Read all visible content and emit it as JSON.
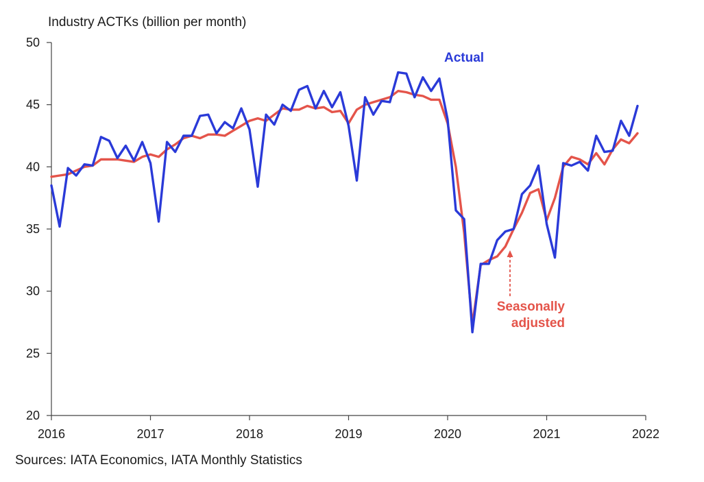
{
  "chart_data": {
    "type": "line",
    "title": "",
    "ylabel": "Industry ACTKs (billion per month)",
    "xlabel": "",
    "source": "Sources: IATA Economics, IATA Monthly Statistics",
    "xlim": [
      2016,
      2022
    ],
    "ylim": [
      20,
      50
    ],
    "yticks": [
      20,
      25,
      30,
      35,
      40,
      45,
      50
    ],
    "xticks": [
      "2016",
      "2017",
      "2018",
      "2019",
      "2020",
      "2021",
      "2022"
    ],
    "grid": false,
    "series": [
      {
        "name": "Actual",
        "color": "#2a3ad8",
        "x": [
          "2016-01",
          "2016-02",
          "2016-03",
          "2016-04",
          "2016-05",
          "2016-06",
          "2016-07",
          "2016-08",
          "2016-09",
          "2016-10",
          "2016-11",
          "2016-12",
          "2017-01",
          "2017-02",
          "2017-03",
          "2017-04",
          "2017-05",
          "2017-06",
          "2017-07",
          "2017-08",
          "2017-09",
          "2017-10",
          "2017-11",
          "2017-12",
          "2018-01",
          "2018-02",
          "2018-03",
          "2018-04",
          "2018-05",
          "2018-06",
          "2018-07",
          "2018-08",
          "2018-09",
          "2018-10",
          "2018-11",
          "2018-12",
          "2019-01",
          "2019-02",
          "2019-03",
          "2019-04",
          "2019-05",
          "2019-06",
          "2019-07",
          "2019-08",
          "2019-09",
          "2019-10",
          "2019-11",
          "2019-12",
          "2020-01",
          "2020-02",
          "2020-03",
          "2020-04",
          "2020-05",
          "2020-06",
          "2020-07",
          "2020-08",
          "2020-09",
          "2020-10",
          "2020-11",
          "2020-12",
          "2021-01",
          "2021-02",
          "2021-03",
          "2021-04",
          "2021-05",
          "2021-06",
          "2021-07",
          "2021-08",
          "2021-09",
          "2021-10",
          "2021-11",
          "2021-12"
        ],
        "values": [
          38.5,
          35.2,
          39.9,
          39.3,
          40.2,
          40.1,
          42.4,
          42.1,
          40.7,
          41.7,
          40.5,
          42.0,
          40.3,
          35.6,
          42.0,
          41.2,
          42.5,
          42.5,
          44.1,
          44.2,
          42.7,
          43.6,
          43.1,
          44.7,
          43.0,
          38.4,
          44.2,
          43.4,
          45.0,
          44.5,
          46.2,
          46.5,
          44.7,
          46.1,
          44.8,
          46.0,
          43.3,
          38.9,
          45.6,
          44.2,
          45.3,
          45.2,
          47.6,
          47.5,
          45.6,
          47.2,
          46.1,
          47.1,
          43.8,
          36.5,
          35.8,
          26.7,
          32.2,
          32.2,
          34.1,
          34.8,
          35.0,
          37.8,
          38.5,
          40.1,
          35.4,
          32.7,
          40.3,
          40.1,
          40.4,
          39.7,
          42.5,
          41.2,
          41.3,
          43.7,
          42.5,
          44.9
        ]
      },
      {
        "name": "Seasonally adjusted",
        "color": "#e4544a",
        "x": [
          "2016-01",
          "2016-02",
          "2016-03",
          "2016-04",
          "2016-05",
          "2016-06",
          "2016-07",
          "2016-08",
          "2016-09",
          "2016-10",
          "2016-11",
          "2016-12",
          "2017-01",
          "2017-02",
          "2017-03",
          "2017-04",
          "2017-05",
          "2017-06",
          "2017-07",
          "2017-08",
          "2017-09",
          "2017-10",
          "2017-11",
          "2017-12",
          "2018-01",
          "2018-02",
          "2018-03",
          "2018-04",
          "2018-05",
          "2018-06",
          "2018-07",
          "2018-08",
          "2018-09",
          "2018-10",
          "2018-11",
          "2018-12",
          "2019-01",
          "2019-02",
          "2019-03",
          "2019-04",
          "2019-05",
          "2019-06",
          "2019-07",
          "2019-08",
          "2019-09",
          "2019-10",
          "2019-11",
          "2019-12",
          "2020-01",
          "2020-02",
          "2020-03",
          "2020-04",
          "2020-05",
          "2020-06",
          "2020-07",
          "2020-08",
          "2020-09",
          "2020-10",
          "2020-11",
          "2020-12",
          "2021-01",
          "2021-02",
          "2021-03",
          "2021-04",
          "2021-05",
          "2021-06",
          "2021-07",
          "2021-08",
          "2021-09",
          "2021-10",
          "2021-11",
          "2021-12"
        ],
        "values": [
          39.2,
          39.3,
          39.4,
          39.7,
          40.0,
          40.1,
          40.6,
          40.6,
          40.6,
          40.5,
          40.4,
          40.8,
          41.0,
          40.8,
          41.4,
          41.8,
          42.3,
          42.5,
          42.3,
          42.6,
          42.6,
          42.5,
          42.9,
          43.3,
          43.7,
          43.9,
          43.7,
          44.2,
          44.7,
          44.6,
          44.6,
          44.9,
          44.7,
          44.8,
          44.4,
          44.5,
          43.5,
          44.6,
          45.0,
          45.2,
          45.4,
          45.6,
          46.1,
          46.0,
          45.8,
          45.7,
          45.4,
          45.4,
          43.5,
          40.0,
          34.7,
          27.3,
          32.1,
          32.5,
          32.8,
          33.6,
          35.0,
          36.3,
          37.9,
          38.2,
          35.7,
          37.5,
          40.0,
          40.8,
          40.6,
          40.2,
          41.1,
          40.2,
          41.4,
          42.2,
          41.9,
          42.7
        ]
      }
    ],
    "annotations": [
      {
        "text": "Actual",
        "color": "#2a3ad8"
      },
      {
        "lines": [
          "Seasonally",
          "adjusted"
        ],
        "color": "#e4544a",
        "arrow": "dashed-up"
      }
    ]
  }
}
